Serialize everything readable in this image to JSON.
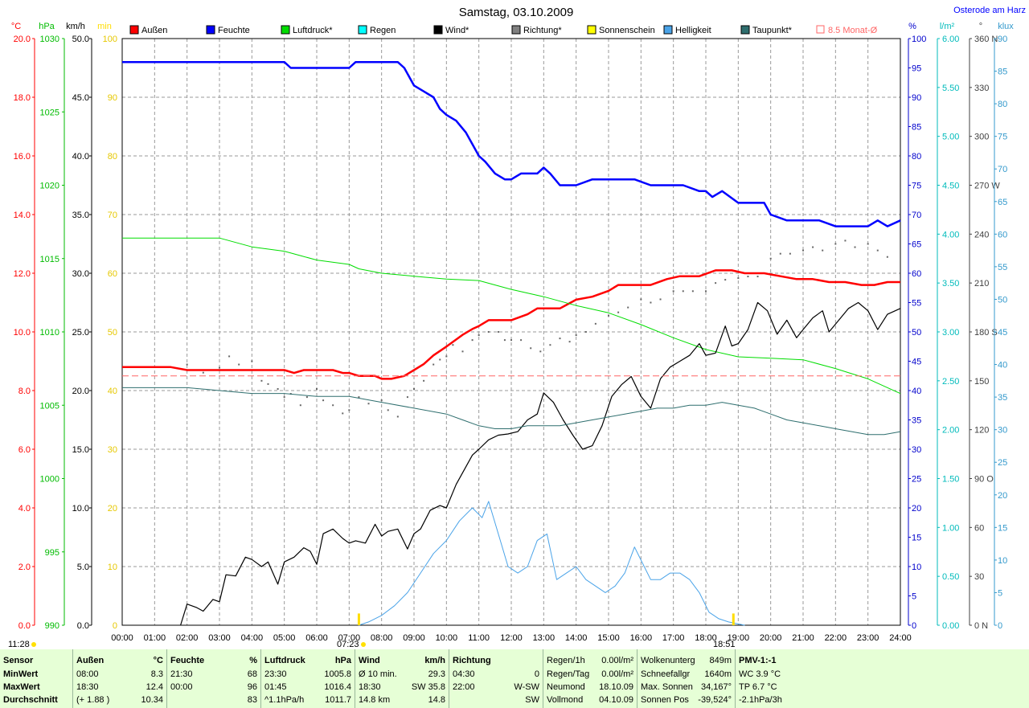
{
  "title": "Samstag, 03.10.2009",
  "location": "Osterode am Harz",
  "legend": [
    {
      "label": "Außen",
      "color": "#ff0000"
    },
    {
      "label": "Feuchte",
      "color": "#0000ff"
    },
    {
      "label": "Luftdruck*",
      "color": "#00dd00"
    },
    {
      "label": "Regen",
      "color": "#00ffff"
    },
    {
      "label": "Wind*",
      "color": "#000000"
    },
    {
      "label": "Richtung*",
      "color": "#808080"
    },
    {
      "label": "Sonnenschein",
      "color": "#ffff00"
    },
    {
      "label": "Helligkeit",
      "color": "#4aa3e8"
    },
    {
      "label": "Taupunkt*",
      "color": "#2e6e6e"
    },
    {
      "label": "8.5 Monat-Ø",
      "color": "#ff6666"
    }
  ],
  "axes": {
    "temp": {
      "unit": "°C",
      "ticks": [
        "20.0",
        "18.0",
        "16.0",
        "14.0",
        "12.0",
        "10.0",
        "8.0",
        "6.0",
        "4.0",
        "2.0",
        "0.0"
      ],
      "color": "#ff0000"
    },
    "pressure": {
      "unit": "hPa",
      "ticks": [
        "1030",
        "1025",
        "1020",
        "1015",
        "1010",
        "1005",
        "1000",
        "995",
        "990"
      ],
      "color": "#00bb00"
    },
    "wind": {
      "unit": "km/h",
      "ticks": [
        "50.0",
        "45.0",
        "40.0",
        "35.0",
        "30.0",
        "25.0",
        "20.0",
        "15.0",
        "10.0",
        "5.0",
        "0.0"
      ],
      "color": "#000000"
    },
    "sun": {
      "unit": "min",
      "ticks": [
        "100",
        "90",
        "80",
        "70",
        "60",
        "50",
        "40",
        "30",
        "20",
        "10",
        "0"
      ],
      "color": "#ffdd00"
    },
    "humidity": {
      "unit": "%",
      "ticks": [
        "100",
        "95",
        "90",
        "85",
        "80",
        "75",
        "70",
        "65",
        "60",
        "55",
        "50",
        "45",
        "40",
        "35",
        "30",
        "25",
        "20",
        "15",
        "10",
        "5",
        "0"
      ],
      "color": "#0000cc"
    },
    "rain": {
      "unit": "l/m²",
      "ticks": [
        "6.00",
        "5.50",
        "5.00",
        "4.50",
        "4.00",
        "3.50",
        "3.00",
        "2.50",
        "2.00",
        "1.50",
        "1.00",
        "0.50",
        "0.00"
      ],
      "color": "#00bbbb"
    },
    "direction": {
      "unit": "°",
      "ticks": [
        "360 N",
        "330",
        "300",
        "270 W",
        "240",
        "210",
        "180 S",
        "150",
        "120",
        "90 O",
        "60",
        "30",
        "0 N"
      ],
      "color": "#404040"
    },
    "lux": {
      "unit": "klux",
      "ticks": [
        "90",
        "85",
        "80",
        "75",
        "70",
        "65",
        "60",
        "55",
        "50",
        "45",
        "40",
        "35",
        "30",
        "25",
        "20",
        "15",
        "10",
        "5",
        "0"
      ],
      "color": "#3399cc"
    },
    "time": {
      "ticks": [
        "00:00",
        "01:00",
        "02:00",
        "03:00",
        "04:00",
        "05:00",
        "06:00",
        "07:00",
        "08:00",
        "09:00",
        "10:00",
        "11:00",
        "12:00",
        "13:00",
        "14:00",
        "15:00",
        "16:00",
        "17:00",
        "18:00",
        "19:00",
        "20:00",
        "21:00",
        "22:00",
        "23:00",
        "24:00"
      ]
    }
  },
  "sun_markers": {
    "left": "11:28",
    "sunrise": "07:23",
    "sunset": "18:51"
  },
  "chart_data": {
    "type": "line",
    "x_unit": "hours",
    "xlim": [
      0,
      24
    ],
    "series": [
      {
        "name": "Außen",
        "axis": "temp",
        "color": "#ff0000",
        "width": 2.5,
        "x": [
          0,
          1,
          1.5,
          2,
          3,
          3.5,
          4,
          5,
          5.3,
          5.6,
          6,
          6.5,
          6.8,
          7,
          7.3,
          7.8,
          8,
          8.3,
          8.7,
          9,
          9.3,
          9.6,
          10,
          10.5,
          10.8,
          11,
          11.3,
          11.6,
          12,
          12.5,
          12.8,
          13,
          13.5,
          14,
          14.5,
          15,
          15.3,
          15.8,
          16.3,
          16.8,
          17.2,
          17.8,
          18.3,
          18.8,
          19.2,
          19.8,
          20.3,
          20.8,
          21.3,
          21.8,
          22.3,
          22.8,
          23.2,
          23.6,
          24
        ],
        "y": [
          8.8,
          8.8,
          8.8,
          8.7,
          8.7,
          8.7,
          8.7,
          8.7,
          8.6,
          8.7,
          8.7,
          8.7,
          8.6,
          8.6,
          8.5,
          8.5,
          8.4,
          8.4,
          8.5,
          8.7,
          8.9,
          9.2,
          9.5,
          9.9,
          10.1,
          10.2,
          10.4,
          10.4,
          10.4,
          10.6,
          10.8,
          10.8,
          10.8,
          11.1,
          11.2,
          11.4,
          11.6,
          11.6,
          11.6,
          11.8,
          11.9,
          11.9,
          12.1,
          12.1,
          12.0,
          12.0,
          11.9,
          11.8,
          11.8,
          11.7,
          11.7,
          11.6,
          11.6,
          11.7,
          11.7
        ]
      },
      {
        "name": "Feuchte",
        "axis": "humidity",
        "color": "#0000ff",
        "width": 2.5,
        "x": [
          0,
          1,
          2,
          3,
          4,
          5,
          5.2,
          5.7,
          6.8,
          7,
          7.2,
          8,
          8.5,
          8.7,
          9,
          9.3,
          9.6,
          9.8,
          10,
          10.3,
          10.6,
          10.8,
          11,
          11.2,
          11.5,
          11.8,
          12,
          12.3,
          12.8,
          13,
          13.2,
          13.5,
          14,
          14.5,
          15,
          15.3,
          15.8,
          16.3,
          16.8,
          17,
          17.3,
          17.8,
          18,
          18.2,
          18.5,
          19,
          19.5,
          19.8,
          20,
          20.5,
          21,
          21.5,
          22,
          22.5,
          23,
          23.3,
          23.6,
          24
        ],
        "y": [
          96,
          96,
          96,
          96,
          96,
          96,
          95,
          95,
          95,
          95,
          96,
          96,
          96,
          95,
          92,
          91,
          90,
          88,
          87,
          86,
          84,
          82,
          80,
          79,
          77,
          76,
          76,
          77,
          77,
          78,
          77,
          75,
          75,
          76,
          76,
          76,
          76,
          75,
          75,
          75,
          75,
          74,
          74,
          73,
          74,
          72,
          72,
          72,
          70,
          69,
          69,
          69,
          68,
          68,
          68,
          69,
          68,
          69
        ]
      },
      {
        "name": "Luftdruck*",
        "axis": "pressure",
        "color": "#00dd00",
        "width": 1,
        "x": [
          0,
          1,
          2,
          3,
          3.5,
          4,
          5,
          5.5,
          6,
          7,
          7.3,
          8,
          9,
          10,
          11,
          11.5,
          12,
          13,
          14,
          15,
          16,
          17,
          18,
          19,
          20,
          21,
          22,
          23,
          24
        ],
        "y": [
          1016.4,
          1016.4,
          1016.4,
          1016.4,
          1016.1,
          1015.8,
          1015.5,
          1015.2,
          1014.9,
          1014.6,
          1014.3,
          1014.0,
          1013.8,
          1013.6,
          1013.5,
          1013.2,
          1012.9,
          1012.4,
          1011.8,
          1011.3,
          1010.5,
          1009.6,
          1008.8,
          1008.3,
          1008.2,
          1008.1,
          1007.5,
          1006.8,
          1005.8
        ]
      },
      {
        "name": "Wind*",
        "axis": "wind",
        "color": "#000000",
        "width": 1.2,
        "x": [
          1.8,
          2,
          2.3,
          2.5,
          2.8,
          3,
          3.2,
          3.5,
          3.8,
          4,
          4.3,
          4.5,
          4.8,
          5,
          5.3,
          5.6,
          5.8,
          6,
          6.2,
          6.5,
          6.8,
          7,
          7.2,
          7.5,
          7.8,
          8,
          8.2,
          8.5,
          8.8,
          9,
          9.2,
          9.5,
          9.8,
          10,
          10.3,
          10.6,
          10.8,
          11,
          11.3,
          11.6,
          11.9,
          12.2,
          12.5,
          12.8,
          13,
          13.3,
          13.6,
          13.9,
          14.2,
          14.5,
          14.8,
          15.1,
          15.4,
          15.7,
          16,
          16.3,
          16.6,
          16.9,
          17.2,
          17.5,
          17.8,
          18,
          18.3,
          18.6,
          18.8,
          19,
          19.3,
          19.6,
          19.9,
          20.2,
          20.5,
          20.8,
          21,
          21.3,
          21.6,
          21.8,
          22.1,
          22.4,
          22.7,
          23,
          23.3,
          23.6,
          24
        ],
        "y": [
          0,
          1.8,
          1.5,
          1.2,
          2.2,
          2.0,
          4.3,
          4.2,
          5.8,
          5.6,
          5.0,
          5.4,
          3.5,
          5.4,
          5.8,
          6.6,
          6.3,
          5.2,
          7.8,
          8.2,
          7.4,
          7.0,
          7.2,
          7.0,
          8.6,
          7.6,
          8.0,
          8.2,
          6.5,
          7.8,
          8.2,
          9.8,
          10.2,
          10.0,
          12.0,
          13.5,
          14.5,
          15.0,
          15.8,
          16.2,
          16.3,
          16.5,
          17.5,
          18.0,
          19.8,
          19.0,
          17.5,
          16.2,
          15.0,
          15.3,
          17.0,
          19.5,
          20.5,
          21.2,
          19.5,
          18.5,
          21.0,
          22.0,
          22.5,
          23.0,
          24.0,
          23.0,
          23.2,
          25.5,
          23.8,
          24.0,
          25.2,
          27.5,
          26.8,
          24.8,
          26.0,
          24.5,
          25.2,
          26.2,
          26.8,
          25.0,
          26.0,
          27.0,
          27.5,
          26.8,
          25.2,
          26.5,
          27.0
        ]
      },
      {
        "name": "Helligkeit",
        "axis": "lux",
        "color": "#4aa3e8",
        "width": 1,
        "x": [
          7.3,
          7.6,
          8,
          8.4,
          8.8,
          9.2,
          9.6,
          10,
          10.4,
          10.8,
          11.1,
          11.3,
          11.6,
          11.9,
          12.2,
          12.5,
          12.8,
          13.1,
          13.4,
          13.7,
          14,
          14.3,
          14.6,
          14.9,
          15.2,
          15.5,
          15.8,
          16,
          16.3,
          16.6,
          16.9,
          17.2,
          17.5,
          17.8,
          18.1,
          18.4,
          18.7,
          19,
          19.2
        ],
        "y": [
          0,
          0.5,
          1.5,
          3,
          5,
          8,
          11,
          13,
          16,
          18,
          16.5,
          19,
          14,
          9,
          8,
          9,
          13,
          14,
          7,
          8,
          9,
          7,
          6,
          5,
          6,
          8,
          12,
          10,
          7,
          7,
          8,
          8,
          7,
          5,
          2,
          1,
          0.5,
          0.2,
          0
        ]
      },
      {
        "name": "Taupunkt*",
        "axis": "temp",
        "color": "#2e6e6e",
        "width": 1,
        "x": [
          0,
          1,
          2,
          3,
          4,
          5,
          6,
          7,
          8,
          9,
          10,
          10.5,
          11,
          11.5,
          12,
          12.5,
          13,
          13.5,
          14,
          14.5,
          15,
          15.5,
          16,
          16.5,
          17,
          17.5,
          18,
          18.5,
          19,
          19.5,
          20,
          20.5,
          21,
          21.5,
          22,
          22.5,
          23,
          23.5,
          24
        ],
        "y": [
          8.1,
          8.1,
          8.1,
          8.0,
          7.9,
          7.9,
          7.8,
          7.8,
          7.6,
          7.4,
          7.2,
          7.0,
          6.8,
          6.7,
          6.7,
          6.8,
          6.8,
          6.8,
          6.9,
          7.0,
          7.1,
          7.2,
          7.3,
          7.4,
          7.4,
          7.5,
          7.5,
          7.6,
          7.5,
          7.4,
          7.2,
          7.0,
          6.9,
          6.8,
          6.7,
          6.6,
          6.5,
          6.5,
          6.6
        ]
      },
      {
        "name": "Monat-Ø",
        "axis": "temp",
        "color": "#ff6666",
        "width": 1,
        "dash": "8,4",
        "x": [
          0,
          24
        ],
        "y": [
          8.5,
          8.5
        ]
      }
    ],
    "direction_points": {
      "axis": "direction",
      "x": [
        2,
        2.5,
        3,
        3.3,
        3.6,
        4,
        4.3,
        4.5,
        4.8,
        5,
        5.2,
        5.5,
        5.7,
        6,
        6.2,
        6.5,
        6.8,
        7,
        7.3,
        7.6,
        8,
        8.2,
        8.5,
        8.8,
        9,
        9.3,
        9.6,
        9.8,
        10,
        10.2,
        10.5,
        10.8,
        11,
        11.3,
        11.6,
        11.8,
        12,
        12.3,
        12.6,
        12.9,
        13.2,
        13.5,
        13.8,
        14,
        14.3,
        14.6,
        15,
        15.3,
        15.6,
        16,
        16.3,
        16.6,
        17,
        17.3,
        17.6,
        18,
        18.3,
        18.6,
        19,
        19.3,
        19.6,
        20,
        20.3,
        20.6,
        21,
        21.3,
        21.6,
        22,
        22.3,
        22.6,
        23,
        23.3,
        23.6
      ],
      "y": [
        160,
        155,
        158,
        165,
        160,
        162,
        150,
        148,
        145,
        140,
        142,
        135,
        140,
        145,
        138,
        135,
        130,
        132,
        140,
        136,
        138,
        132,
        128,
        140,
        145,
        150,
        160,
        163,
        165,
        172,
        168,
        175,
        178,
        180,
        180,
        175,
        175,
        175,
        170,
        168,
        172,
        176,
        174,
        178,
        180,
        185,
        190,
        192,
        195,
        200,
        198,
        200,
        205,
        205,
        205,
        205,
        210,
        212,
        213,
        214,
        214,
        225,
        228,
        228,
        230,
        232,
        230,
        234,
        236,
        232,
        234,
        230,
        226
      ]
    },
    "sun_bars": {
      "axis": "sun",
      "x": [
        7.3,
        18.85
      ],
      "y": [
        0.5,
        0.5
      ]
    }
  },
  "footer": {
    "headers": {
      "sensor": "Sensor",
      "aussen": "Außen",
      "aussen_unit": "°C",
      "feuchte": "Feuchte",
      "feuchte_unit": "%",
      "luftdruck": "Luftdruck",
      "luftdruck_unit": "hPa",
      "wind": "Wind",
      "wind_unit": "km/h",
      "richtung": "Richtung"
    },
    "labels": {
      "min": "MinWert",
      "max": "MaxWert",
      "avg": "Durchschnitt"
    },
    "aussen": {
      "min_t": "08:00",
      "min_v": "8.3",
      "max_t": "18:30",
      "max_v": "12.4",
      "avg_t": "(+ 1.88 )",
      "avg_v": "10.34"
    },
    "feuchte": {
      "min_t": "21:30",
      "min_v": "68",
      "max_t": "00:00",
      "max_v": "96",
      "avg_v": "83"
    },
    "luftdruck": {
      "min_t": "23:30",
      "min_v": "1005.8",
      "max_t": "01:45",
      "max_v": "1016.4",
      "avg_t": "^1.1hPa/h",
      "avg_v": "1011.7"
    },
    "wind": {
      "min_t": "Ø 10 min.",
      "min_v": "29.3",
      "max_t": "18:30",
      "max_v": "SW 35.8",
      "avg_t": "14.8 km",
      "avg_v": "14.8"
    },
    "richtung": {
      "min_t": "04:30",
      "min_v": "0",
      "max_t": "22:00",
      "max_v": "W-SW",
      "avg_v": "SW"
    },
    "regen": [
      [
        "Regen/1h",
        "0.00l/m²"
      ],
      [
        "Regen/Tag",
        "0.00l/m²"
      ],
      [
        "Neumond",
        "18.10.09"
      ],
      [
        "Vollmond",
        "04.10.09"
      ]
    ],
    "wolken": [
      [
        "Wolkenunterg",
        "849m"
      ],
      [
        "Schneefallgr",
        "1640m"
      ],
      [
        "Max. Sonnen",
        "34,167°"
      ],
      [
        "Sonnen Pos",
        "-39,524°"
      ]
    ],
    "pmv": {
      "title": "PMV-1:-1",
      "lines": [
        "WC 3.9 °C",
        "TP 6.7 °C",
        "-2.1hPa/3h"
      ]
    }
  }
}
